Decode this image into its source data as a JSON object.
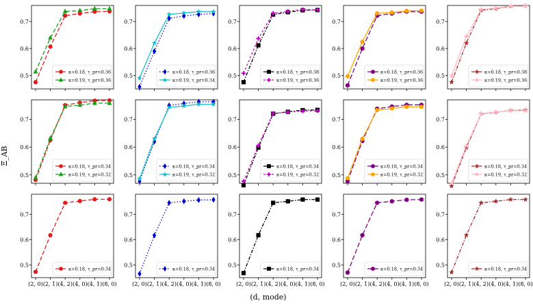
{
  "figure": {
    "ylabel": "Ξ_AB",
    "xlabel": "(d, mode)"
  },
  "chart_data": {
    "type": "line",
    "layout": "3x5 grid of subplots",
    "categories": [
      "(2, 0)",
      "(2, 1)",
      "(4, 2)",
      "(4, 0)",
      "(4, 1)",
      "(8, 0)"
    ],
    "xlabel": "(d, mode)",
    "ylabel": "Ξ_AB",
    "yticks": [
      "0.5",
      "0.6",
      "0.7"
    ],
    "ylim_rows": [
      [
        0.45,
        0.76
      ],
      [
        0.47,
        0.77
      ],
      [
        0.45,
        0.78
      ]
    ],
    "styles": [
      {
        "color": "#e41a1c",
        "dash": "6,3",
        "marker": "circle"
      },
      {
        "color": "#1a9e1a",
        "dash": "6,3",
        "marker": "triangle"
      },
      {
        "color": "#0000cc",
        "dash": "1.5,2.5",
        "marker": "diamond"
      },
      {
        "color": "#17becf",
        "dash": "",
        "marker": "star"
      },
      {
        "color": "#000000",
        "dash": "5,2,1.5,2",
        "marker": "square"
      },
      {
        "color": "#cc00cc",
        "dash": "3,3",
        "marker": "plus"
      },
      {
        "color": "#800080",
        "dash": "7,3",
        "marker": "hexagon"
      },
      {
        "color": "#ffa500",
        "dash": "",
        "marker": "circle"
      },
      {
        "color": "#a52a2a",
        "dash": "5,2,1.5,2",
        "marker": "star"
      },
      {
        "color": "#ffb6c1",
        "dash": "",
        "marker": "star"
      }
    ],
    "panels": [
      [
        {
          "series": [
            {
              "name": "κ=0.18, τ_pr=0.36",
              "style": 0,
              "values": [
                0.475,
                0.607,
                0.722,
                0.73,
                0.737,
                0.738
              ]
            },
            {
              "name": "κ=0.19, τ_pr=0.36",
              "style": 1,
              "values": [
                0.514,
                0.64,
                0.738,
                0.741,
                0.748,
                0.748
              ]
            }
          ]
        },
        {
          "series": [
            {
              "name": "κ=0.18, τ_pr=0.36",
              "style": 2,
              "values": [
                0.458,
                0.59,
                0.712,
                0.721,
                0.727,
                0.73
              ]
            },
            {
              "name": "κ=0.19, τ_pr=0.34",
              "style": 3,
              "values": [
                0.49,
                0.62,
                0.727,
                0.732,
                0.737,
                0.737
              ]
            }
          ]
        },
        {
          "series": [
            {
              "name": "κ=0.18, τ_pr=0.38",
              "style": 4,
              "values": [
                0.475,
                0.612,
                0.726,
                0.735,
                0.742,
                0.743
              ]
            },
            {
              "name": "κ=0.19, τ_pr=0.36",
              "style": 5,
              "values": [
                0.508,
                0.637,
                0.731,
                0.738,
                0.745,
                0.744
              ]
            }
          ]
        },
        {
          "series": [
            {
              "name": "κ=0.18, τ_pr=0.36",
              "style": 6,
              "values": [
                0.463,
                0.6,
                0.722,
                0.73,
                0.737,
                0.737
              ]
            },
            {
              "name": "κ=0.19, τ_pr=0.36",
              "style": 7,
              "values": [
                0.497,
                0.625,
                0.731,
                0.734,
                0.74,
                0.741
              ]
            }
          ]
        },
        {
          "series": [
            {
              "name": "κ=0.18, τ_pr=0.38",
              "style": 8,
              "values": [
                0.475,
                0.62,
                0.742,
                0.748,
                0.757,
                0.758
              ]
            },
            {
              "name": "κ=0.19, τ_pr=0.36",
              "style": 9,
              "values": [
                0.498,
                0.645,
                0.745,
                0.75,
                0.758,
                0.757
              ]
            }
          ]
        }
      ],
      [
        {
          "series": [
            {
              "name": "κ=0.18, τ_pr=0.34",
              "style": 0,
              "values": [
                0.482,
                0.625,
                0.751,
                0.76,
                0.767,
                0.768
              ]
            },
            {
              "name": "κ=0.19, τ_pr=0.32",
              "style": 1,
              "values": [
                0.49,
                0.632,
                0.746,
                0.751,
                0.758,
                0.758
              ]
            }
          ]
        },
        {
          "series": [
            {
              "name": "κ=0.18, τ_pr=0.34",
              "style": 2,
              "values": [
                0.478,
                0.62,
                0.75,
                0.757,
                0.763,
                0.763
              ]
            },
            {
              "name": "κ=0.19, τ_pr=0.32",
              "style": 3,
              "values": [
                0.486,
                0.63,
                0.743,
                0.748,
                0.754,
                0.754
              ]
            }
          ]
        },
        {
          "series": [
            {
              "name": "κ=0.18, τ_pr=0.34",
              "style": 4,
              "values": [
                0.463,
                0.598,
                0.72,
                0.727,
                0.733,
                0.734
              ]
            },
            {
              "name": "κ=0.19, τ_pr=0.32",
              "style": 5,
              "values": [
                0.477,
                0.606,
                0.721,
                0.726,
                0.73,
                0.731
              ]
            }
          ]
        },
        {
          "series": [
            {
              "name": "κ=0.18, τ_pr=0.34",
              "style": 6,
              "values": [
                0.477,
                0.622,
                0.738,
                0.746,
                0.752,
                0.752
              ]
            },
            {
              "name": "κ=0.19, τ_pr=0.32",
              "style": 7,
              "values": [
                0.488,
                0.63,
                0.733,
                0.739,
                0.745,
                0.745
              ]
            }
          ]
        },
        {
          "series": [
            {
              "name": "κ=0.18, τ_pr=0.34",
              "style": 8,
              "values": [
                0.46,
                0.598,
                0.72,
                0.725,
                0.732,
                0.733
              ]
            },
            {
              "name": "κ=0.19, τ_pr=0.32",
              "style": 9,
              "values": [
                0.47,
                0.605,
                0.721,
                0.726,
                0.731,
                0.731
              ]
            }
          ]
        }
      ],
      [
        {
          "series": [
            {
              "name": "κ=0.18, τ_pr=0.34",
              "style": 0,
              "values": [
                0.473,
                0.618,
                0.746,
                0.753,
                0.76,
                0.76
              ]
            }
          ]
        },
        {
          "series": [
            {
              "name": "κ=0.18, τ_pr=0.34",
              "style": 2,
              "values": [
                0.465,
                0.617,
                0.746,
                0.752,
                0.757,
                0.758
              ]
            }
          ]
        },
        {
          "series": [
            {
              "name": "κ=0.18, τ_pr=0.34",
              "style": 4,
              "values": [
                0.468,
                0.618,
                0.746,
                0.752,
                0.759,
                0.759
              ]
            }
          ]
        },
        {
          "series": [
            {
              "name": "κ=0.18, τ_pr=0.34",
              "style": 6,
              "values": [
                0.47,
                0.618,
                0.746,
                0.752,
                0.758,
                0.759
              ]
            }
          ]
        },
        {
          "series": [
            {
              "name": "κ=0.18, τ_pr=0.34",
              "style": 8,
              "values": [
                0.471,
                0.618,
                0.746,
                0.752,
                0.759,
                0.759
              ]
            }
          ]
        }
      ]
    ]
  }
}
